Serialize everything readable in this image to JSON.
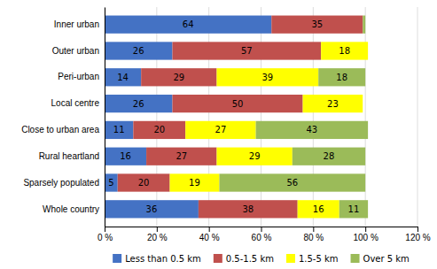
{
  "chart_data": {
    "type": "bar",
    "orientation": "horizontal",
    "stacked": true,
    "categories": [
      "Inner urban",
      "Outer urban",
      "Peri-urban",
      "Local centre",
      "Close to urban area",
      "Rural heartland",
      "Sparsely populated",
      "Whole country"
    ],
    "series": [
      {
        "name": "Less than 0.5 km",
        "color": "#4472C4",
        "values": [
          64,
          26,
          14,
          26,
          11,
          16,
          5,
          36
        ],
        "value_labels": [
          "64",
          "26",
          "14",
          "26",
          "11",
          "16",
          "5",
          "36"
        ]
      },
      {
        "name": "0.5-1.5 km",
        "color": "#C0504D",
        "values": [
          35,
          57,
          29,
          50,
          20,
          27,
          20,
          38
        ],
        "value_labels": [
          "35",
          "57",
          "29",
          "50",
          "20",
          "27",
          "20",
          "38"
        ]
      },
      {
        "name": "1.5-5 km",
        "color": "#FFFF00",
        "values": [
          0,
          18,
          39,
          23,
          27,
          29,
          19,
          16
        ],
        "value_labels": [
          null,
          "18",
          "39",
          "23",
          "27",
          "29",
          "19",
          "16"
        ]
      },
      {
        "name": "Over 5 km",
        "color": "#9BBB59",
        "values": [
          1,
          0,
          18,
          0,
          43,
          28,
          56,
          11
        ],
        "value_labels": [
          null,
          null,
          "18",
          null,
          "43",
          "28",
          "56",
          "11"
        ]
      }
    ],
    "xlim": [
      0,
      120
    ],
    "xticks": [
      {
        "value": 0,
        "label": "0 %"
      },
      {
        "value": 20,
        "label": "20 %"
      },
      {
        "value": 40,
        "label": "40 %"
      },
      {
        "value": 60,
        "label": "60 %"
      },
      {
        "value": 80,
        "label": "80 %"
      },
      {
        "value": 100,
        "label": "100 %"
      },
      {
        "value": 120,
        "label": "120 %"
      }
    ],
    "grid": true,
    "data_labels": true,
    "legend": "bottom"
  }
}
